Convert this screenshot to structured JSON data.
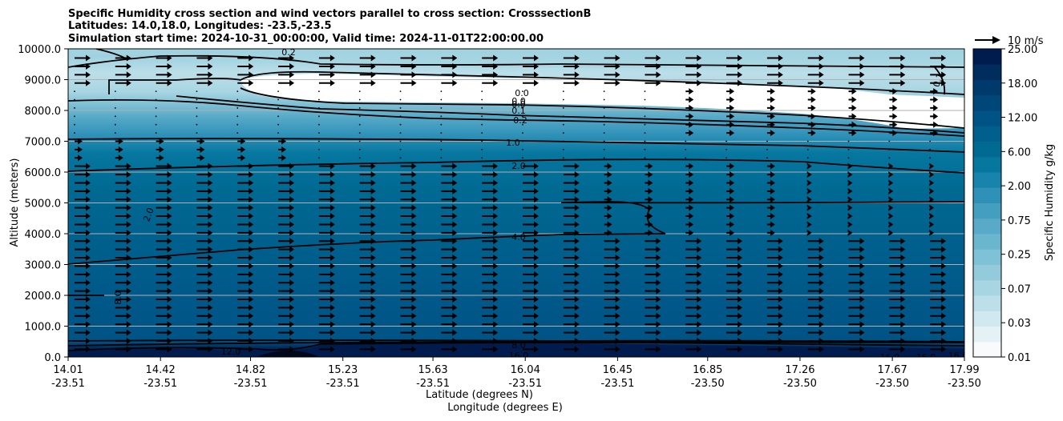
{
  "chart_data": {
    "type": "heatmap",
    "title_lines": [
      "Specific Humidity cross section and wind vectors parallel to cross section: CrosssectionB",
      "Latitudes: 14.0,18.0, Longitudes: -23.5,-23.5",
      "Simulation start time: 2024-10-31_00:00:00, Valid time: 2024-11-01T22:00:00.00"
    ],
    "ylabel": "Altitude (meters)",
    "xlabel_lines": [
      "Latitude (degrees N)",
      "Longitude (degrees E)"
    ],
    "ylim": [
      0,
      10000
    ],
    "y_ticks": [
      "0.0",
      "1000.0",
      "2000.0",
      "3000.0",
      "4000.0",
      "5000.0",
      "6000.0",
      "7000.0",
      "8000.0",
      "9000.0",
      "10000.0"
    ],
    "x_ticks": [
      {
        "lat": "14.01",
        "lon": "-23.51"
      },
      {
        "lat": "14.42",
        "lon": "-23.51"
      },
      {
        "lat": "14.82",
        "lon": "-23.51"
      },
      {
        "lat": "15.23",
        "lon": "-23.51"
      },
      {
        "lat": "15.63",
        "lon": "-23.51"
      },
      {
        "lat": "16.04",
        "lon": "-23.51"
      },
      {
        "lat": "16.45",
        "lon": "-23.51"
      },
      {
        "lat": "16.85",
        "lon": "-23.50"
      },
      {
        "lat": "17.26",
        "lon": "-23.50"
      },
      {
        "lat": "17.67",
        "lon": "-23.50"
      },
      {
        "lat": "17.99",
        "lon": "-23.50"
      }
    ],
    "colorbar": {
      "label": "Specific Humidity g/kg",
      "tick_labels": [
        "0.01",
        "0.03",
        "0.07",
        "0.25",
        "0.75",
        "2.00",
        "6.00",
        "12.00",
        "18.00",
        "25.00"
      ],
      "colors": [
        "#f7fbfc",
        "#e4f2f5",
        "#d0e8ef",
        "#bcdfe9",
        "#a7d5e2",
        "#93cbdc",
        "#7fc1d6",
        "#6bb6cf",
        "#58aac8",
        "#449ec0",
        "#2f91b8",
        "#1884ae",
        "#06779f",
        "#006a93",
        "#005f8c",
        "#005385",
        "#004779",
        "#003a6c",
        "#002c5e",
        "#001c4e"
      ]
    },
    "quiver_key": "10 m/s",
    "contour_labels": [
      "0.2",
      "0.0",
      "0.0",
      "0.0",
      "0.1",
      "0.2",
      "1.0",
      "2.0",
      "4.0",
      "8.0",
      "16.0",
      "12.0",
      "16.0",
      "16.0",
      "16.0",
      "8.0",
      "0.1",
      "2.0"
    ],
    "vertical_profile": [
      {
        "altitude": 0,
        "q": 17
      },
      {
        "altitude": 300,
        "q": 12
      },
      {
        "altitude": 600,
        "q": 8.5
      },
      {
        "altitude": 2000,
        "q": 7
      },
      {
        "altitude": 3000,
        "q": 6
      },
      {
        "altitude": 4000,
        "q": 4
      },
      {
        "altitude": 5000,
        "q": 3
      },
      {
        "altitude": 6000,
        "q": 2
      },
      {
        "altitude": 7000,
        "q": 1
      },
      {
        "altitude": 7700,
        "q": 0.2
      },
      {
        "altitude": 8500,
        "q": 0.01
      },
      {
        "altitude": 9500,
        "q": 0.07
      },
      {
        "altitude": 10000,
        "q": 0.1
      }
    ],
    "grid": "horizontal"
  }
}
